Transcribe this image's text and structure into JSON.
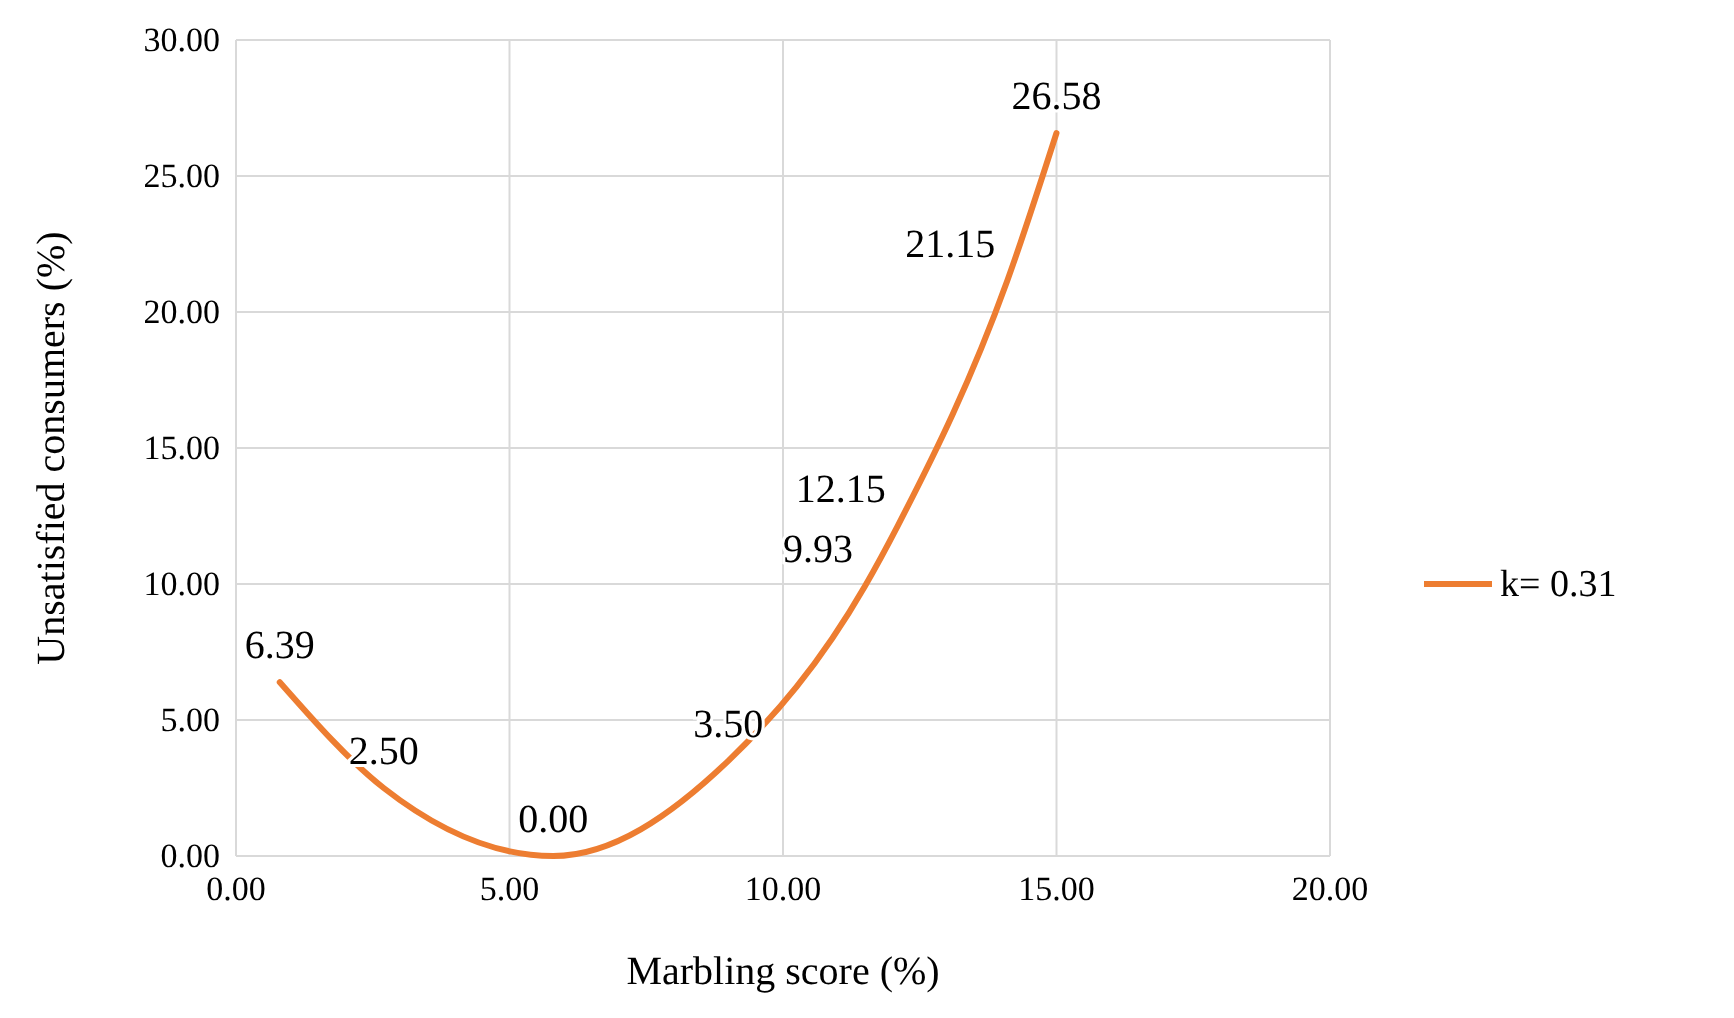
{
  "chart_data": {
    "type": "line",
    "xlabel": "Marbling score (%)",
    "ylabel": "Unsatisfied consumers (%)",
    "series": [
      {
        "name": "k= 0.31",
        "color": "#ed7d31",
        "x": [
          0.8,
          2.7,
          5.8,
          9.0,
          11.5,
          12.1,
          14.1,
          15.0
        ],
        "values": [
          6.39,
          2.5,
          0,
          3.5,
          9.93,
          12.15,
          21.15,
          26.58
        ],
        "value_labels": [
          "6.39",
          "2.50",
          "0.00",
          "3.50",
          "9.93",
          "12.15",
          "21.15",
          "26.58"
        ]
      }
    ],
    "xlim": [
      0,
      20
    ],
    "xticks": [
      {
        "value": 0,
        "label": "0.00"
      },
      {
        "value": 5,
        "label": "5.00"
      },
      {
        "value": 10,
        "label": "10.00"
      },
      {
        "value": 15,
        "label": "15.00"
      },
      {
        "value": 20,
        "label": "20.00"
      }
    ],
    "ylim": [
      0,
      30
    ],
    "yticks": [
      {
        "value": 0,
        "label": "0.00"
      },
      {
        "value": 5,
        "label": "5.00"
      },
      {
        "value": 10,
        "label": "10.00"
      },
      {
        "value": 15,
        "label": "15.00"
      },
      {
        "value": 20,
        "label": "20.00"
      },
      {
        "value": 25,
        "label": "25.00"
      },
      {
        "value": 30,
        "label": "30.00"
      }
    ],
    "grid": true,
    "legend": "right",
    "marker": "none",
    "line_style": "solid"
  }
}
